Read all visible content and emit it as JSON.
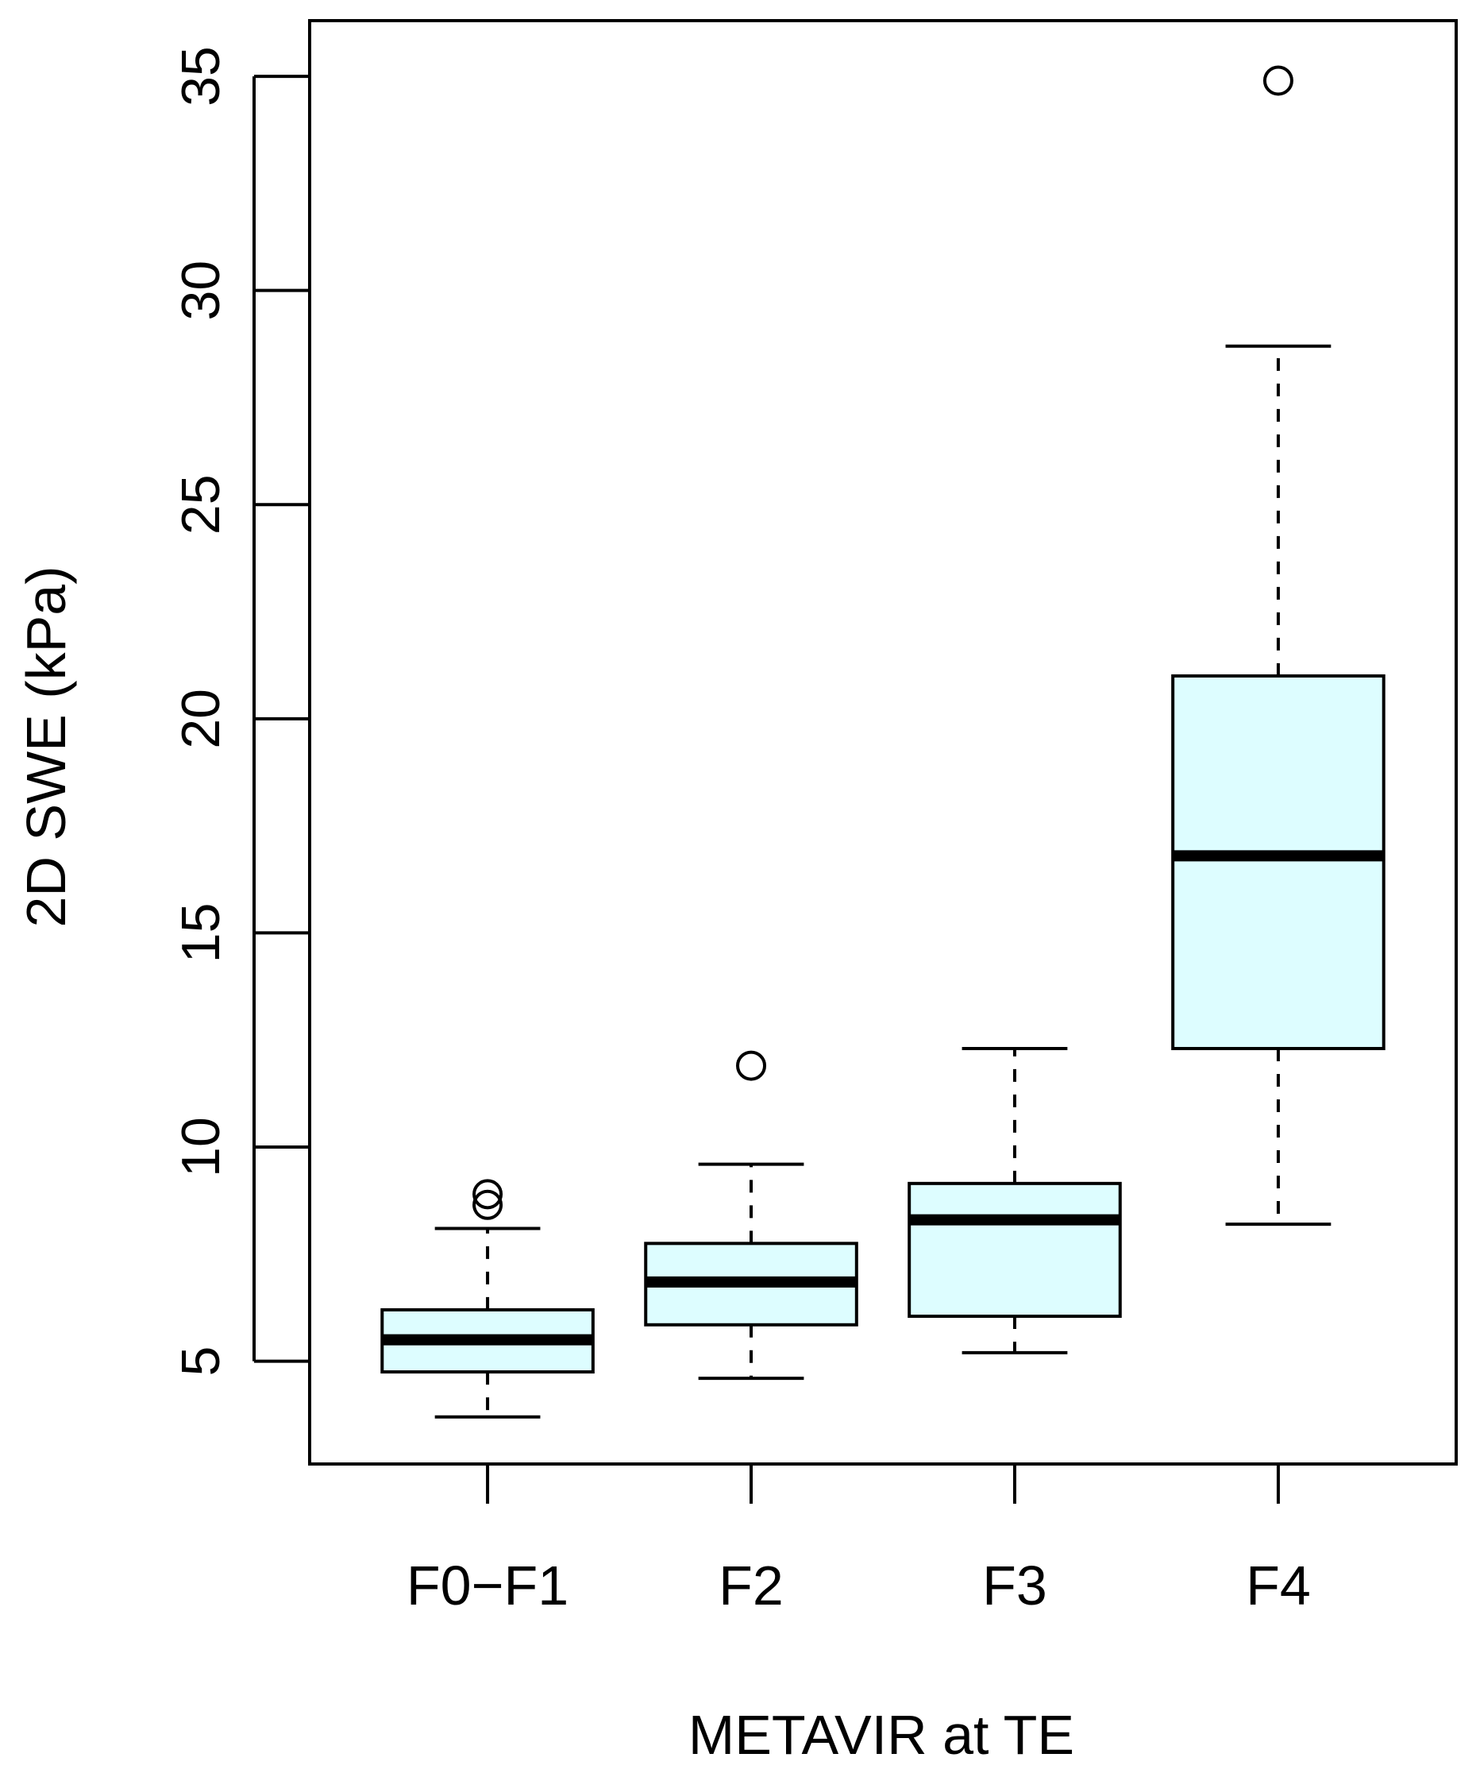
{
  "chart_data": {
    "type": "boxplot",
    "title": "",
    "xlabel": "METAVIR at TE",
    "ylabel": "2D SWE (kPa)",
    "ylim": [
      2.6,
      36.3
    ],
    "yticks": [
      5,
      10,
      15,
      20,
      25,
      30,
      35
    ],
    "categories": [
      "F0−F1",
      "F2",
      "F3",
      "F4"
    ],
    "box_fill": "#DDFDFF",
    "stroke": "#000000",
    "boxes": [
      {
        "label": "F0−F1",
        "whisker_low": 3.7,
        "q1": 4.75,
        "median": 5.5,
        "q3": 6.2,
        "whisker_high": 8.1,
        "outliers": [
          8.65,
          8.9
        ]
      },
      {
        "label": "F2",
        "whisker_low": 4.6,
        "q1": 5.85,
        "median": 6.85,
        "q3": 7.75,
        "whisker_high": 9.6,
        "outliers": [
          11.9
        ]
      },
      {
        "label": "F3",
        "whisker_low": 5.2,
        "q1": 6.05,
        "median": 8.3,
        "q3": 9.15,
        "whisker_high": 12.3,
        "outliers": []
      },
      {
        "label": "F4",
        "whisker_low": 8.2,
        "q1": 12.3,
        "median": 16.8,
        "q3": 21.0,
        "whisker_high": 28.7,
        "outliers": [
          34.9
        ]
      }
    ]
  }
}
